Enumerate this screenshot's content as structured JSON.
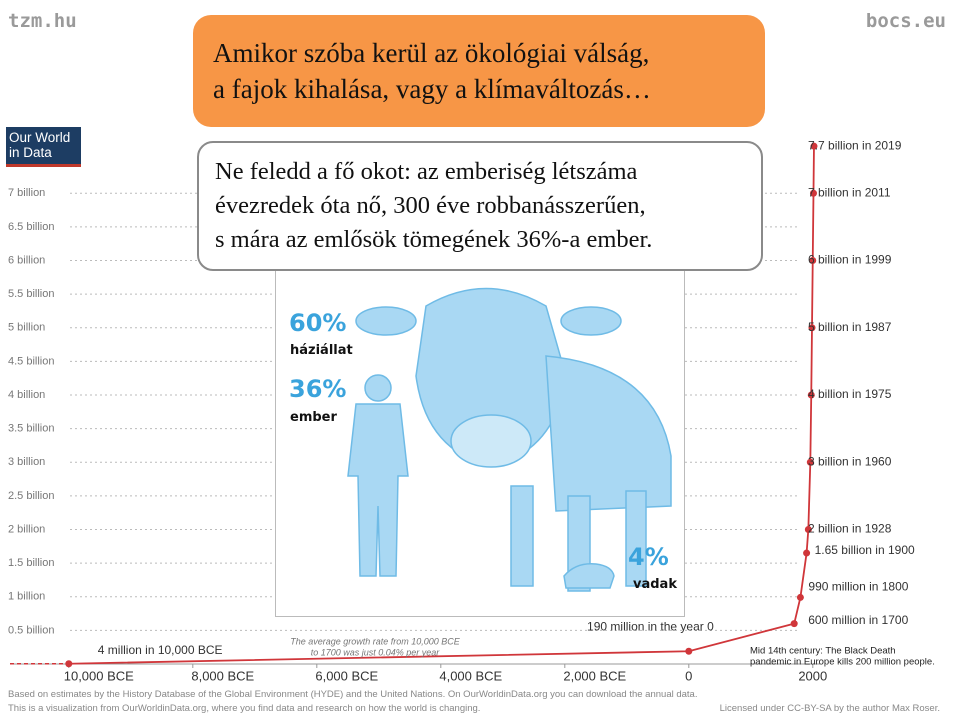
{
  "header": {
    "left": "tzm.hu",
    "right": "bocs.eu"
  },
  "headline": {
    "lines": [
      "Amikor szóba kerül az ökológiai válság,",
      "a fajok kihalása, vagy a klímaváltozás…"
    ]
  },
  "callout": {
    "lines": [
      "Ne feledd a fő okot: az emberiség létszáma",
      "évezredek óta nő, 300 éve robbanásszerűen,",
      "s mára az emlősök tömegének 36%-a ember."
    ]
  },
  "infographic": {
    "items": [
      {
        "value": "60%",
        "label": "háziállat"
      },
      {
        "value": "36%",
        "label": "ember"
      },
      {
        "value": "4%",
        "label": "vadak"
      }
    ]
  },
  "logo": {
    "lines": [
      "Our World",
      "in Data"
    ]
  },
  "chart_data": {
    "type": "line",
    "x": [
      -10000,
      0,
      1700,
      1800,
      1900,
      1928,
      1960,
      1975,
      1987,
      1999,
      2011,
      2019
    ],
    "values": [
      0.004,
      0.19,
      0.6,
      0.99,
      1.65,
      2,
      3,
      4,
      5,
      6,
      7,
      7.7
    ],
    "value_labels": [
      "4 million in 10,000 BCE",
      "190 million in the year 0",
      "600 million in 1700",
      "990 million in 1800",
      "1.65 billion in 1900",
      "2 billion in 1928",
      "3 billion in 1960",
      "4 billion in 1975",
      "5 billion in 1987",
      "6 billion in 1999",
      "7 billion in 2011",
      "7.7 billion in 2019"
    ],
    "color": "#d0363a",
    "annotations": [
      {
        "lines": [
          "The average growth rate from 10,000 BCE",
          "to 1700 was just 0.04% per year"
        ]
      },
      {
        "lines": [
          "Mid 14th century: The Black Death",
          "pandemic in Europe kills 200 million people."
        ]
      }
    ],
    "xlim": [
      -10400,
      2100
    ],
    "xticks": [
      {
        "value": -10000,
        "label": "10,000 BCE"
      },
      {
        "value": -8000,
        "label": "8,000 BCE"
      },
      {
        "value": -6000,
        "label": "6,000 BCE"
      },
      {
        "value": -4000,
        "label": "4,000 BCE"
      },
      {
        "value": -2000,
        "label": "2,000 BCE"
      },
      0,
      2000
    ],
    "ylim": [
      0,
      8
    ],
    "yticks": [
      {
        "value": 0.5,
        "label": "0.5 billion"
      },
      {
        "value": 1,
        "label": "1 billion"
      },
      {
        "value": 1.5,
        "label": "1.5 billion"
      },
      {
        "value": 2,
        "label": "2 billion"
      },
      {
        "value": 2.5,
        "label": "2.5 billion"
      },
      {
        "value": 3,
        "label": "3 billion"
      },
      {
        "value": 3.5,
        "label": "3.5 billion"
      },
      {
        "value": 4,
        "label": "4 billion"
      },
      {
        "value": 4.5,
        "label": "4.5 billion"
      },
      {
        "value": 5,
        "label": "5 billion"
      },
      {
        "value": 5.5,
        "label": "5.5 billion"
      },
      {
        "value": 6,
        "label": "6 billion"
      },
      {
        "value": 6.5,
        "label": "6.5 billion"
      },
      {
        "value": 7,
        "label": "7 billion"
      }
    ],
    "grid": true
  },
  "footer": {
    "source": [
      "Based on estimates by the History Database of the Global Environment (HYDE) and the United Nations. On OurWorldinData.org you can download the annual data.",
      "This is a visualization from OurWorldinData.org, where you find data and research on how the world is changing."
    ],
    "license": "Licensed under CC-BY-SA by the author Max Roser."
  }
}
